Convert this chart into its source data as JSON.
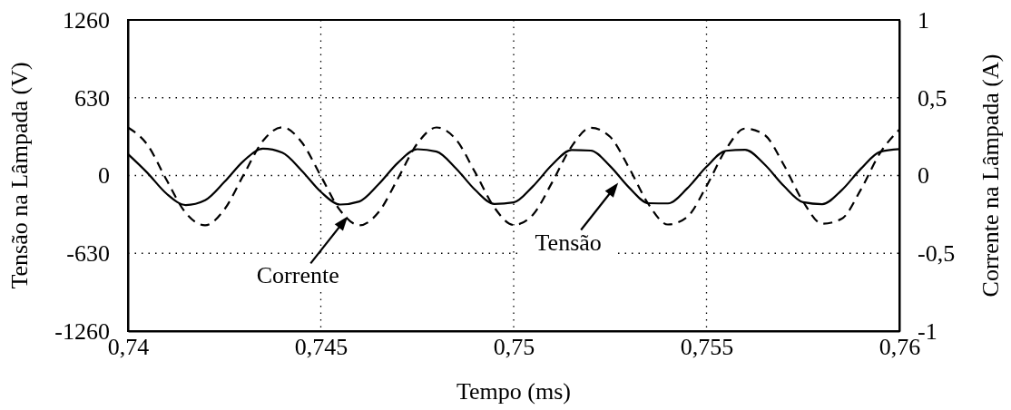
{
  "chart_data": {
    "type": "line",
    "xlabel": "Tempo (ms)",
    "ylabel": "Tensão na Lâmpada (V)",
    "y2label": "Corrente na Lâmpada (A)",
    "x": [
      0.74,
      0.7405,
      0.741,
      0.7415,
      0.742,
      0.7425,
      0.743,
      0.7435,
      0.744,
      0.7445,
      0.745,
      0.7455,
      0.746,
      0.7465,
      0.747,
      0.7475,
      0.748,
      0.7485,
      0.749,
      0.7495,
      0.75,
      0.7505,
      0.751,
      0.7515,
      0.752,
      0.7525,
      0.753,
      0.7535,
      0.754,
      0.7545,
      0.755,
      0.7555,
      0.756,
      0.7565,
      0.757,
      0.7575,
      0.758,
      0.7585,
      0.759,
      0.7595,
      0.76
    ],
    "series": [
      {
        "color": "#000000",
        "line_style": "solid",
        "values": [
          174,
          23,
          -147,
          -239,
          -200,
          -52,
          119,
          217,
          185,
          41,
          -132,
          -235,
          -210,
          -70,
          104,
          213,
          194,
          59,
          -116,
          -230,
          -218,
          -87,
          88,
          207,
          202,
          76,
          -100,
          -224,
          -226,
          -104,
          71,
          200,
          209,
          92,
          -83,
          -216,
          -232,
          -120,
          54,
          192,
          214
        ]
      },
      {
        "color": "#000000",
        "line_style": "dashed",
        "axis": "y2",
        "values": [
          0.309,
          0.199,
          -0.028,
          -0.241,
          -0.32,
          -0.218,
          0.005,
          0.223,
          0.31,
          0.216,
          -0.003,
          -0.224,
          -0.32,
          -0.235,
          -0.019,
          0.205,
          0.309,
          0.233,
          0.021,
          -0.206,
          -0.318,
          -0.252,
          -0.043,
          0.186,
          0.307,
          0.249,
          0.045,
          -0.186,
          -0.315,
          -0.266,
          -0.068,
          0.167,
          0.302,
          0.262,
          0.07,
          -0.166,
          -0.31,
          -0.279,
          -0.091,
          0.145,
          0.296
        ]
      }
    ],
    "xlim": [
      0.74,
      0.76
    ],
    "xticks": [
      {
        "value": 0.74,
        "label": "0,74"
      },
      {
        "value": 0.745,
        "label": "0,745"
      },
      {
        "value": 0.75,
        "label": "0,75"
      },
      {
        "value": 0.755,
        "label": "0,755"
      },
      {
        "value": 0.76,
        "label": "0,76"
      }
    ],
    "ylim": [
      -1260,
      1260
    ],
    "yticks": [
      -1260,
      -630,
      0,
      630,
      1260
    ],
    "y2lim": [
      -1,
      1
    ],
    "y2ticks": [
      -1,
      {
        "value": -0.5,
        "label": "-0,5"
      },
      0,
      {
        "value": 0.5,
        "label": "0,5"
      },
      1
    ],
    "grid": true,
    "marker": "none",
    "annotations": [
      {
        "text": "Corrente",
        "x": 0.7457,
        "y": -330
      },
      {
        "text": "Tensão",
        "x": 0.75271,
        "y": -59
      }
    ]
  }
}
